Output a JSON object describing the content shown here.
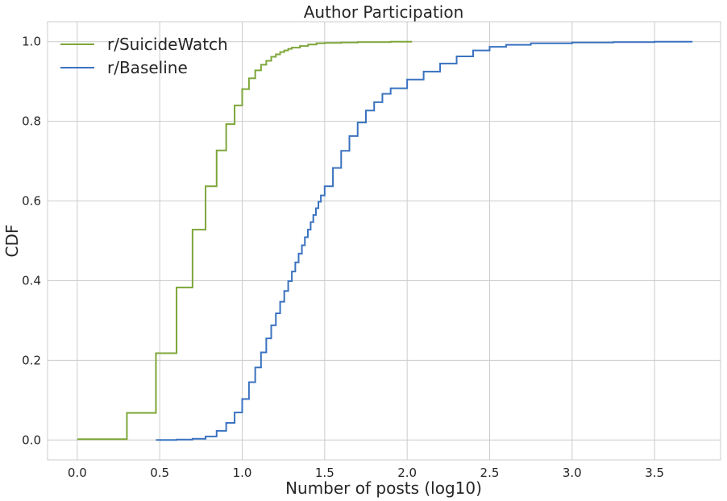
{
  "chart_data": {
    "type": "line",
    "title": "Author Participation",
    "xlabel": "Number of posts (log10)",
    "ylabel": "CDF",
    "xlim": [
      -0.18,
      3.9
    ],
    "ylim": [
      -0.05,
      1.05
    ],
    "xticks": [
      0.0,
      0.5,
      1.0,
      1.5,
      2.0,
      2.5,
      3.0,
      3.5
    ],
    "xtick_labels": [
      "0.0",
      "0.5",
      "1.0",
      "1.5",
      "2.0",
      "2.5",
      "3.0",
      "3.5"
    ],
    "yticks": [
      0.0,
      0.2,
      0.4,
      0.6,
      0.8,
      1.0
    ],
    "ytick_labels": [
      "0.0",
      "0.2",
      "0.4",
      "0.6",
      "0.8",
      "1.0"
    ],
    "grid": true,
    "legend_position": "top-left",
    "series": [
      {
        "name": "r/SuicideWatch",
        "color": "#7ea63a",
        "step": true,
        "points": [
          [
            0.0,
            0.002
          ],
          [
            0.301,
            0.068
          ],
          [
            0.477,
            0.218
          ],
          [
            0.602,
            0.383
          ],
          [
            0.699,
            0.528
          ],
          [
            0.778,
            0.637
          ],
          [
            0.845,
            0.727
          ],
          [
            0.903,
            0.793
          ],
          [
            0.954,
            0.84
          ],
          [
            1.0,
            0.881
          ],
          [
            1.041,
            0.908
          ],
          [
            1.079,
            0.928
          ],
          [
            1.114,
            0.942
          ],
          [
            1.146,
            0.952
          ],
          [
            1.176,
            0.962
          ],
          [
            1.204,
            0.968
          ],
          [
            1.23,
            0.974
          ],
          [
            1.255,
            0.978
          ],
          [
            1.279,
            0.982
          ],
          [
            1.301,
            0.985
          ],
          [
            1.35,
            0.989
          ],
          [
            1.4,
            0.993
          ],
          [
            1.45,
            0.996
          ],
          [
            1.5,
            0.997
          ],
          [
            1.6,
            0.998
          ],
          [
            1.7,
            0.999
          ],
          [
            1.8,
            0.999
          ],
          [
            1.9,
            1.0
          ],
          [
            2.03,
            1.0
          ]
        ]
      },
      {
        "name": "r/Baseline",
        "color": "#3a72c0",
        "step": true,
        "points": [
          [
            0.477,
            0.0
          ],
          [
            0.602,
            0.001
          ],
          [
            0.699,
            0.003
          ],
          [
            0.778,
            0.009
          ],
          [
            0.845,
            0.023
          ],
          [
            0.903,
            0.043
          ],
          [
            0.954,
            0.069
          ],
          [
            1.0,
            0.103
          ],
          [
            1.041,
            0.145
          ],
          [
            1.079,
            0.182
          ],
          [
            1.114,
            0.22
          ],
          [
            1.146,
            0.255
          ],
          [
            1.176,
            0.288
          ],
          [
            1.204,
            0.318
          ],
          [
            1.23,
            0.347
          ],
          [
            1.255,
            0.374
          ],
          [
            1.279,
            0.399
          ],
          [
            1.301,
            0.423
          ],
          [
            1.322,
            0.446
          ],
          [
            1.342,
            0.468
          ],
          [
            1.362,
            0.489
          ],
          [
            1.38,
            0.509
          ],
          [
            1.398,
            0.528
          ],
          [
            1.415,
            0.547
          ],
          [
            1.431,
            0.565
          ],
          [
            1.447,
            0.582
          ],
          [
            1.462,
            0.598
          ],
          [
            1.477,
            0.614
          ],
          [
            1.5,
            0.637
          ],
          [
            1.55,
            0.683
          ],
          [
            1.6,
            0.726
          ],
          [
            1.65,
            0.763
          ],
          [
            1.7,
            0.797
          ],
          [
            1.75,
            0.827
          ],
          [
            1.8,
            0.848
          ],
          [
            1.85,
            0.869
          ],
          [
            1.9,
            0.883
          ],
          [
            2.0,
            0.905
          ],
          [
            2.1,
            0.925
          ],
          [
            2.2,
            0.945
          ],
          [
            2.3,
            0.963
          ],
          [
            2.4,
            0.978
          ],
          [
            2.5,
            0.987
          ],
          [
            2.6,
            0.992
          ],
          [
            2.75,
            0.996
          ],
          [
            3.0,
            0.998
          ],
          [
            3.25,
            0.999
          ],
          [
            3.5,
            1.0
          ],
          [
            3.73,
            1.0
          ]
        ]
      }
    ]
  }
}
